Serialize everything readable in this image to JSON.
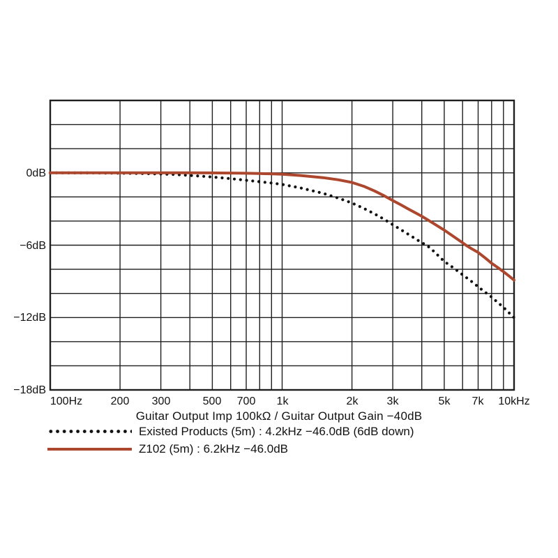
{
  "page": {
    "background": "#ffffff"
  },
  "colors": {
    "grid": "#1f1f1f",
    "text": "#121212",
    "existed_products": "#111111",
    "z102": "#ac462d"
  },
  "chart_data": {
    "type": "line",
    "title": "",
    "xlabel": "Guitar Output Imp 100kΩ / Guitar Output Gain −40dB",
    "ylabel": "",
    "x_scale": "log",
    "x_range_hz": [
      100,
      10000
    ],
    "y_range_db": [
      -18,
      6
    ],
    "grid": {
      "enabled": true,
      "x_lines_hz": [
        100,
        200,
        300,
        400,
        500,
        600,
        700,
        800,
        900,
        1000,
        2000,
        3000,
        4000,
        5000,
        6000,
        7000,
        8000,
        9000,
        10000
      ],
      "y_step_db": 2
    },
    "x_ticks": [
      {
        "hz": 100,
        "label": "100Hz"
      },
      {
        "hz": 200,
        "label": "200"
      },
      {
        "hz": 300,
        "label": "300"
      },
      {
        "hz": 500,
        "label": "500"
      },
      {
        "hz": 700,
        "label": "700"
      },
      {
        "hz": 1000,
        "label": "1k"
      },
      {
        "hz": 2000,
        "label": "2k"
      },
      {
        "hz": 3000,
        "label": "3k"
      },
      {
        "hz": 5000,
        "label": "5k"
      },
      {
        "hz": 7000,
        "label": "7k"
      },
      {
        "hz": 10000,
        "label": "10kHz"
      }
    ],
    "y_ticks": [
      {
        "db": 0,
        "label": "0dB"
      },
      {
        "db": -6,
        "label": "−6dB"
      },
      {
        "db": -12,
        "label": "−12dB"
      },
      {
        "db": -18,
        "label": "−18dB"
      }
    ],
    "series": [
      {
        "name": "Existed Products (5m)",
        "style": "dotted",
        "color": "#111111",
        "points_hz_db": [
          [
            100,
            0
          ],
          [
            150,
            -0.01
          ],
          [
            200,
            -0.03
          ],
          [
            250,
            -0.06
          ],
          [
            300,
            -0.1
          ],
          [
            350,
            -0.15
          ],
          [
            400,
            -0.22
          ],
          [
            450,
            -0.28
          ],
          [
            500,
            -0.35
          ],
          [
            600,
            -0.48
          ],
          [
            700,
            -0.62
          ],
          [
            800,
            -0.74
          ],
          [
            900,
            -0.85
          ],
          [
            1000,
            -0.96
          ],
          [
            1200,
            -1.25
          ],
          [
            1500,
            -1.7
          ],
          [
            1750,
            -2.1
          ],
          [
            2000,
            -2.5
          ],
          [
            2250,
            -2.95
          ],
          [
            2500,
            -3.4
          ],
          [
            2750,
            -3.85
          ],
          [
            3000,
            -4.3
          ],
          [
            3500,
            -5.1
          ],
          [
            4000,
            -5.8
          ],
          [
            4200,
            -6.0
          ],
          [
            4500,
            -6.5
          ],
          [
            5000,
            -7.35
          ],
          [
            5500,
            -7.9
          ],
          [
            6000,
            -8.45
          ],
          [
            6500,
            -8.95
          ],
          [
            7000,
            -9.45
          ],
          [
            7500,
            -9.9
          ],
          [
            8000,
            -10.3
          ],
          [
            8500,
            -10.75
          ],
          [
            9000,
            -11.15
          ],
          [
            9500,
            -11.6
          ],
          [
            10000,
            -12.0
          ]
        ]
      },
      {
        "name": "Z102 (5m)",
        "style": "solid",
        "color": "#ac462d",
        "points_hz_db": [
          [
            100,
            0
          ],
          [
            200,
            0
          ],
          [
            300,
            0
          ],
          [
            400,
            0
          ],
          [
            500,
            -0.01
          ],
          [
            600,
            -0.02
          ],
          [
            700,
            -0.04
          ],
          [
            800,
            -0.06
          ],
          [
            900,
            -0.09
          ],
          [
            1000,
            -0.12
          ],
          [
            1200,
            -0.22
          ],
          [
            1500,
            -0.4
          ],
          [
            1750,
            -0.58
          ],
          [
            2000,
            -0.8
          ],
          [
            2250,
            -1.12
          ],
          [
            2500,
            -1.5
          ],
          [
            2750,
            -1.9
          ],
          [
            3000,
            -2.3
          ],
          [
            3250,
            -2.65
          ],
          [
            3500,
            -3.0
          ],
          [
            4000,
            -3.6
          ],
          [
            4500,
            -4.2
          ],
          [
            5000,
            -4.75
          ],
          [
            5500,
            -5.3
          ],
          [
            6000,
            -5.8
          ],
          [
            6200,
            -6.0
          ],
          [
            6500,
            -6.25
          ],
          [
            7000,
            -6.6
          ],
          [
            7500,
            -7.05
          ],
          [
            8000,
            -7.5
          ],
          [
            8500,
            -7.85
          ],
          [
            9000,
            -8.2
          ],
          [
            9500,
            -8.55
          ],
          [
            10000,
            -8.9
          ]
        ]
      }
    ],
    "legend": [
      {
        "marker": "dotted",
        "label": "Existed Products (5m) : 4.2kHz −46.0dB (6dB down)"
      },
      {
        "marker": "solid",
        "label": "Z102 (5m) : 6.2kHz −46.0dB"
      }
    ],
    "legend_position": "bottom-left"
  }
}
